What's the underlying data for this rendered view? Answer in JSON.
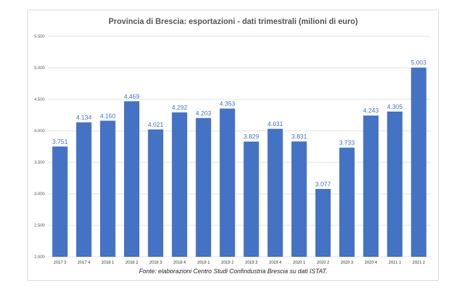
{
  "chart_data": {
    "type": "bar",
    "title": "Provincia di Brescia: esportazioni - dati trimestrali (milioni di euro)",
    "categories": [
      "2017 3",
      "2017 4",
      "2018 1",
      "2018 2",
      "2018 3",
      "2018 4",
      "2019 1",
      "2019 2",
      "2019 3",
      "2019 4",
      "2020 1",
      "2020 2",
      "2020 3",
      "2020 4",
      "2021 1",
      "2021 2"
    ],
    "values": [
      3751,
      4134,
      4160,
      4469,
      4021,
      4292,
      4203,
      4353,
      3829,
      4031,
      3831,
      3077,
      3733,
      4243,
      4305,
      5003
    ],
    "value_labels": [
      "3.751",
      "4.134",
      "4.160",
      "4.469",
      "4.021",
      "4.292",
      "4.203",
      "4.353",
      "3.829",
      "4.031",
      "3.831",
      "3.077",
      "3.733",
      "4.243",
      "4.305",
      "5.003"
    ],
    "yticks": [
      2000,
      2500,
      3000,
      3500,
      4000,
      4500,
      5000,
      5500
    ],
    "ytick_labels": [
      "2.000",
      "2.500",
      "3.000",
      "3.500",
      "4.000",
      "4.500",
      "5.000",
      "5.500"
    ],
    "ylim": [
      2000,
      5500
    ],
    "grid": true,
    "bar_color": "#4472c4",
    "label_color": "#3a72c4"
  },
  "source_note": "Fonte: elaborazioni Centro Studi Confindustria Brescia su dati ISTAT."
}
